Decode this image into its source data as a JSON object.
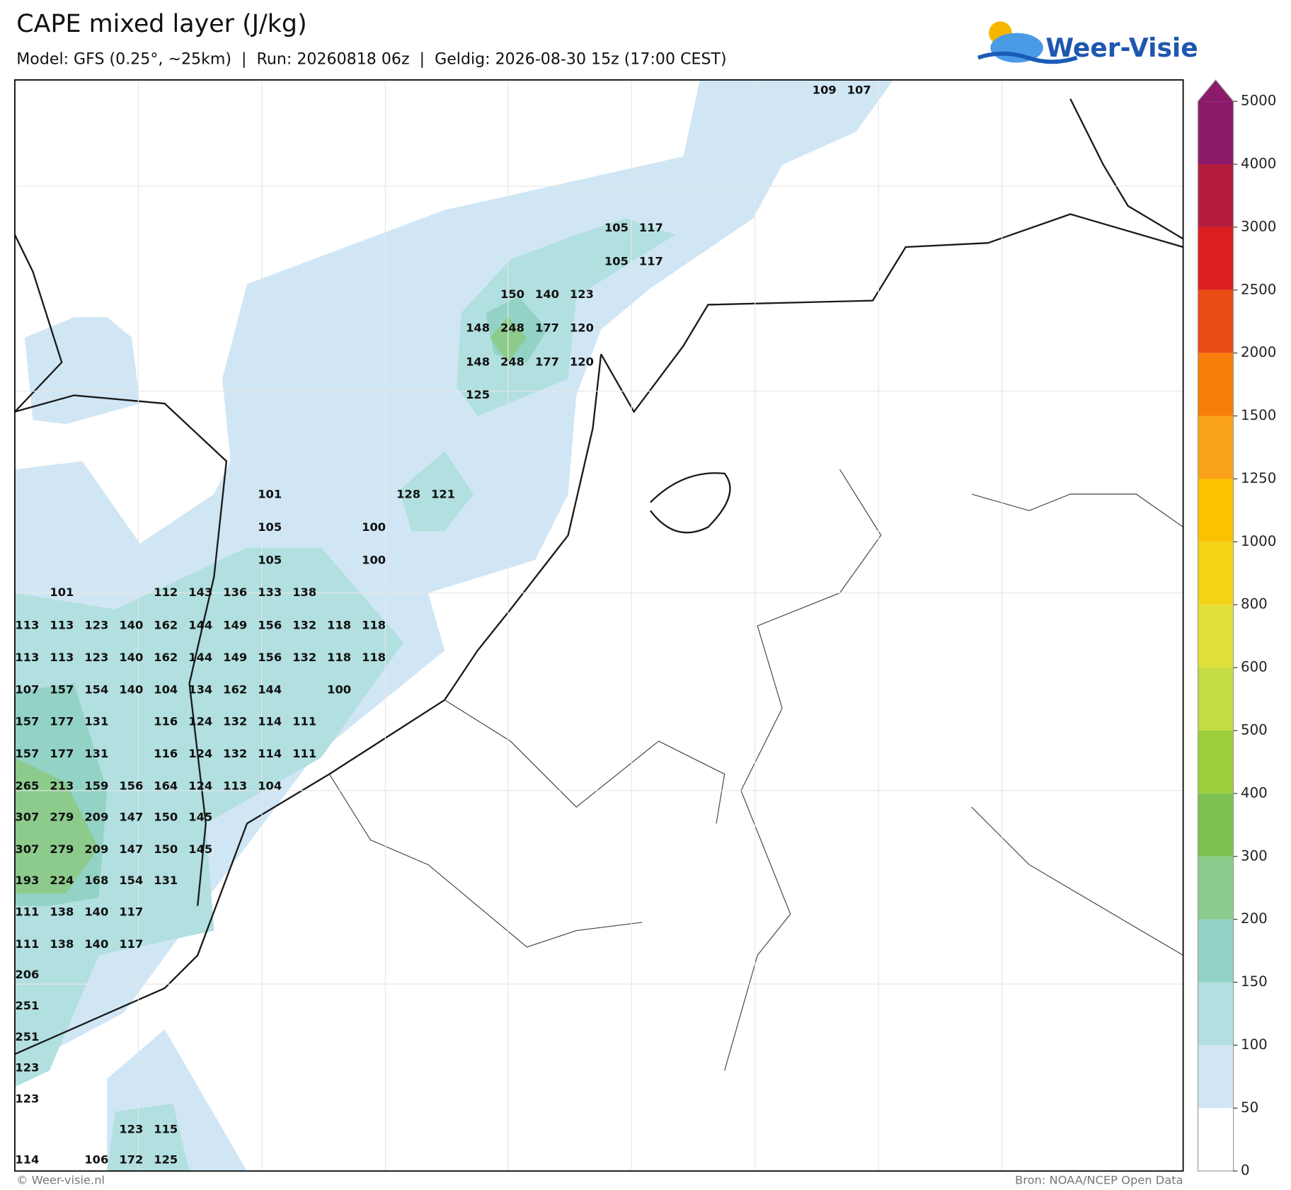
{
  "header": {
    "title": "CAPE mixed layer (J/kg)",
    "subtitle": "Model: GFS (0.25°, ~25km)  |  Run: 20260818 06z  |  Geldig: 2026-08-30 15z (17:00 CEST)",
    "logo": "Weer-Visie"
  },
  "footer": {
    "left": "© Weer-visie.nl",
    "right": "Bron: NOAA/NCEP Open Data"
  },
  "colorbar": {
    "ticks": [
      0,
      50,
      100,
      150,
      200,
      300,
      400,
      500,
      600,
      800,
      1000,
      1250,
      1500,
      2000,
      2500,
      3000,
      4000,
      5000
    ],
    "colors": [
      "#ffffff",
      "#d0e6f5",
      "#b2dfdf",
      "#93d3c6",
      "#8ccb8c",
      "#7dc150",
      "#9dce3e",
      "#c6dc45",
      "#e0e03a",
      "#f3d417",
      "#fcc200",
      "#f9a21a",
      "#f77e0a",
      "#ea4d14",
      "#dd1e1e",
      "#b41c3e",
      "#8b1a6b"
    ]
  },
  "map_labels": [
    [
      109,
      107
    ],
    [
      105,
      117
    ],
    [
      105,
      117
    ],
    [
      150,
      140,
      123
    ],
    [
      148,
      248,
      177,
      120
    ],
    [
      148,
      248,
      177,
      120
    ],
    [
      125
    ],
    [
      101,
      128,
      121
    ],
    [
      105,
      100
    ],
    [
      105,
      100
    ],
    [
      101,
      112,
      143,
      136,
      133,
      138
    ],
    [
      113,
      113,
      123,
      140,
      162,
      144,
      149,
      156,
      132,
      118,
      118
    ],
    [
      113,
      113,
      123,
      140,
      162,
      144,
      149,
      156,
      132,
      118,
      118
    ],
    [
      107,
      157,
      154,
      140,
      104,
      134,
      162,
      144,
      100
    ],
    [
      157,
      177,
      131,
      116,
      124,
      132,
      114,
      111
    ],
    [
      157,
      177,
      131,
      116,
      124,
      132,
      114,
      111
    ],
    [
      265,
      213,
      159,
      156,
      164,
      124,
      113,
      104
    ],
    [
      307,
      279,
      209,
      147,
      150,
      145
    ],
    [
      307,
      279,
      209,
      147,
      150,
      145
    ],
    [
      193,
      224,
      168,
      154,
      131
    ],
    [
      111,
      138,
      140,
      117
    ],
    [
      111,
      138,
      140,
      117
    ],
    [
      206
    ],
    [
      251
    ],
    [
      251
    ],
    [
      123
    ],
    [
      123
    ],
    [
      123,
      115
    ],
    [
      114,
      106,
      172,
      125
    ]
  ]
}
